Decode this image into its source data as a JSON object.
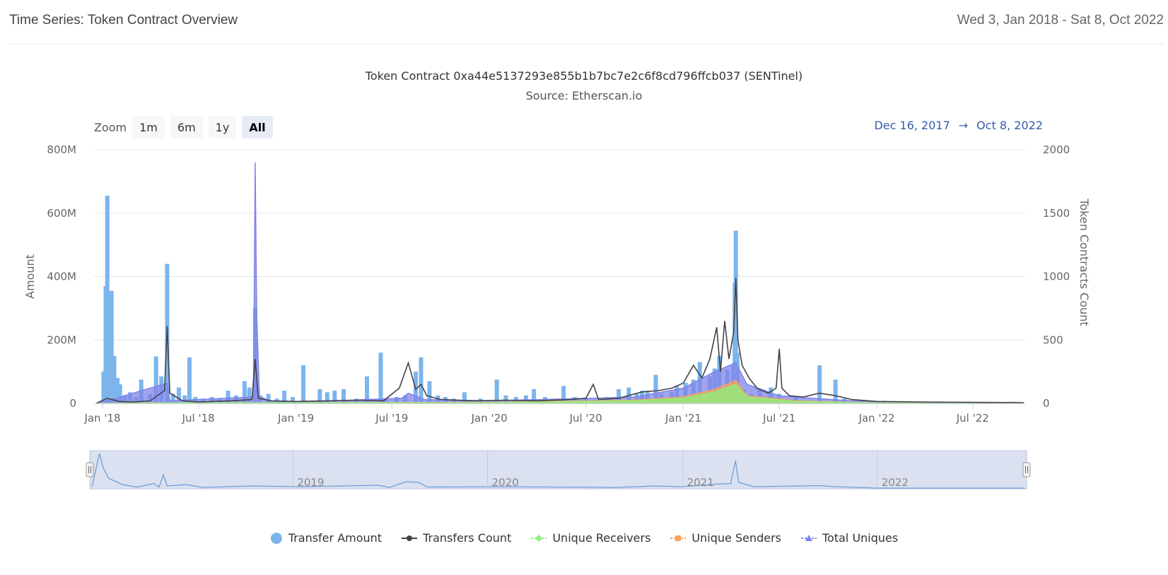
{
  "header": {
    "title": "Time Series: Token Contract Overview",
    "date_range": "Wed 3, Jan 2018 - Sat 8, Oct 2022"
  },
  "zoom": {
    "label": "Zoom",
    "buttons": [
      "1m",
      "6m",
      "1y",
      "All"
    ],
    "active": "All"
  },
  "range_display": {
    "from": "Dec 16, 2017",
    "arrow": "→",
    "to": "Oct 8, 2022"
  },
  "colors": {
    "transfer_amount": "#7cb5ec",
    "transfers_count": "#434348",
    "unique_receivers": "#90ed7d",
    "unique_senders": "#f7a35c",
    "total_uniques": "#8085e9",
    "grid": "#e6e6e6",
    "navigator_fill": "#dbe1f0",
    "navigator_line": "#6e9fd8"
  },
  "chart_data": {
    "type": "bar+line",
    "title": "Token Contract 0xa44e5137293e855b1b7bc7e2c6f8cd796ffcb037 (SENTinel)",
    "subtitle": "Source: Etherscan.io",
    "ylabel_left": "Amount",
    "ylabel_right": "Token Contracts Count",
    "ylim_left": [
      0,
      800000000
    ],
    "ylim_right": [
      0,
      2000
    ],
    "yticks_left": [
      "0",
      "200M",
      "400M",
      "600M",
      "800M"
    ],
    "yticks_right": [
      "0",
      "500",
      "1000",
      "1500",
      "2000"
    ],
    "xlim": [
      "2017-12-16",
      "2022-10-08"
    ],
    "xticks": [
      {
        "date": "2018-01-01",
        "label": "Jan '18"
      },
      {
        "date": "2018-07-01",
        "label": "Jul '18"
      },
      {
        "date": "2019-01-01",
        "label": "Jan '19"
      },
      {
        "date": "2019-07-01",
        "label": "Jul '19"
      },
      {
        "date": "2020-01-01",
        "label": "Jan '20"
      },
      {
        "date": "2020-07-01",
        "label": "Jul '20"
      },
      {
        "date": "2021-01-01",
        "label": "Jan '21"
      },
      {
        "date": "2021-07-01",
        "label": "Jul '21"
      },
      {
        "date": "2022-01-01",
        "label": "Jan '22"
      },
      {
        "date": "2022-07-01",
        "label": "Jul '22"
      }
    ],
    "navigator_labels": [
      {
        "date": "2019-01-01",
        "label": "2019"
      },
      {
        "date": "2020-01-01",
        "label": "2020"
      },
      {
        "date": "2021-01-01",
        "label": "2021"
      },
      {
        "date": "2022-01-01",
        "label": "2022"
      }
    ],
    "legend_position": "bottom-center",
    "grid": true,
    "series": [
      {
        "name": "Transfer Amount",
        "kind": "bar",
        "axis": "left",
        "unit": "M",
        "points": [
          [
            "2018-01-03",
            100
          ],
          [
            "2018-01-07",
            370
          ],
          [
            "2018-01-10",
            655
          ],
          [
            "2018-01-14",
            350
          ],
          [
            "2018-01-18",
            355
          ],
          [
            "2018-01-23",
            150
          ],
          [
            "2018-01-29",
            80
          ],
          [
            "2018-02-03",
            60
          ],
          [
            "2018-02-12",
            25
          ],
          [
            "2018-02-22",
            35
          ],
          [
            "2018-03-05",
            20
          ],
          [
            "2018-03-15",
            75
          ],
          [
            "2018-04-01",
            30
          ],
          [
            "2018-04-12",
            148
          ],
          [
            "2018-04-22",
            85
          ],
          [
            "2018-05-03",
            440
          ],
          [
            "2018-05-14",
            30
          ],
          [
            "2018-05-25",
            50
          ],
          [
            "2018-06-05",
            25
          ],
          [
            "2018-06-14",
            145
          ],
          [
            "2018-06-25",
            20
          ],
          [
            "2018-07-10",
            15
          ],
          [
            "2018-07-26",
            20
          ],
          [
            "2018-08-10",
            15
          ],
          [
            "2018-08-26",
            40
          ],
          [
            "2018-09-10",
            25
          ],
          [
            "2018-09-26",
            70
          ],
          [
            "2018-10-05",
            50
          ],
          [
            "2018-10-16",
            300
          ],
          [
            "2018-10-25",
            25
          ],
          [
            "2018-11-10",
            30
          ],
          [
            "2018-11-26",
            15
          ],
          [
            "2018-12-10",
            40
          ],
          [
            "2018-12-26",
            20
          ],
          [
            "2019-01-15",
            120
          ],
          [
            "2019-02-15",
            45
          ],
          [
            "2019-03-01",
            35
          ],
          [
            "2019-03-15",
            40
          ],
          [
            "2019-04-01",
            45
          ],
          [
            "2019-04-25",
            15
          ],
          [
            "2019-05-15",
            85
          ],
          [
            "2019-06-10",
            160
          ],
          [
            "2019-06-20",
            15
          ],
          [
            "2019-07-10",
            20
          ],
          [
            "2019-07-26",
            25
          ],
          [
            "2019-08-15",
            100
          ],
          [
            "2019-08-25",
            145
          ],
          [
            "2019-09-10",
            70
          ],
          [
            "2019-09-26",
            25
          ],
          [
            "2019-10-10",
            20
          ],
          [
            "2019-10-26",
            15
          ],
          [
            "2019-11-15",
            35
          ],
          [
            "2019-12-15",
            15
          ],
          [
            "2020-01-15",
            75
          ],
          [
            "2020-02-01",
            25
          ],
          [
            "2020-02-20",
            20
          ],
          [
            "2020-03-10",
            25
          ],
          [
            "2020-03-25",
            45
          ],
          [
            "2020-04-15",
            20
          ],
          [
            "2020-05-01",
            15
          ],
          [
            "2020-05-20",
            55
          ],
          [
            "2020-06-10",
            20
          ],
          [
            "2020-07-01",
            15
          ],
          [
            "2020-07-20",
            10
          ],
          [
            "2020-08-10",
            20
          ],
          [
            "2020-09-01",
            45
          ],
          [
            "2020-09-20",
            50
          ],
          [
            "2020-10-05",
            30
          ],
          [
            "2020-10-15",
            40
          ],
          [
            "2020-10-25",
            40
          ],
          [
            "2020-11-10",
            90
          ],
          [
            "2020-11-20",
            30
          ],
          [
            "2020-12-10",
            35
          ],
          [
            "2020-12-20",
            55
          ],
          [
            "2021-01-05",
            65
          ],
          [
            "2021-01-20",
            75
          ],
          [
            "2021-02-01",
            130
          ],
          [
            "2021-02-20",
            85
          ],
          [
            "2021-03-01",
            110
          ],
          [
            "2021-03-10",
            150
          ],
          [
            "2021-03-25",
            105
          ],
          [
            "2021-04-05",
            120
          ],
          [
            "2021-04-08",
            380
          ],
          [
            "2021-04-10",
            545
          ],
          [
            "2021-04-13",
            160
          ],
          [
            "2021-04-25",
            45
          ],
          [
            "2021-05-10",
            30
          ],
          [
            "2021-05-25",
            45
          ],
          [
            "2021-06-15",
            50
          ],
          [
            "2021-07-01",
            30
          ],
          [
            "2021-08-01",
            20
          ],
          [
            "2021-09-15",
            120
          ],
          [
            "2021-10-15",
            75
          ],
          [
            "2021-11-01",
            15
          ],
          [
            "2021-12-01",
            10
          ],
          [
            "2022-01-15",
            8
          ],
          [
            "2022-03-15",
            5
          ],
          [
            "2022-06-15",
            5
          ],
          [
            "2022-09-15",
            5
          ]
        ]
      },
      {
        "name": "Transfers Count",
        "kind": "line",
        "axis": "right",
        "points": [
          [
            "2017-12-20",
            0
          ],
          [
            "2018-01-10",
            40
          ],
          [
            "2018-02-01",
            15
          ],
          [
            "2018-03-01",
            10
          ],
          [
            "2018-04-01",
            20
          ],
          [
            "2018-04-28",
            100
          ],
          [
            "2018-05-03",
            610
          ],
          [
            "2018-05-08",
            80
          ],
          [
            "2018-06-01",
            20
          ],
          [
            "2018-07-01",
            10
          ],
          [
            "2018-08-01",
            15
          ],
          [
            "2018-09-01",
            20
          ],
          [
            "2018-10-10",
            30
          ],
          [
            "2018-10-16",
            350
          ],
          [
            "2018-10-22",
            40
          ],
          [
            "2018-11-15",
            20
          ],
          [
            "2019-01-01",
            15
          ],
          [
            "2019-03-01",
            20
          ],
          [
            "2019-05-01",
            25
          ],
          [
            "2019-06-15",
            20
          ],
          [
            "2019-07-15",
            120
          ],
          [
            "2019-08-01",
            320
          ],
          [
            "2019-08-15",
            110
          ],
          [
            "2019-08-25",
            150
          ],
          [
            "2019-09-05",
            60
          ],
          [
            "2019-10-01",
            30
          ],
          [
            "2019-12-01",
            20
          ],
          [
            "2020-02-01",
            25
          ],
          [
            "2020-04-01",
            20
          ],
          [
            "2020-06-01",
            30
          ],
          [
            "2020-07-01",
            40
          ],
          [
            "2020-07-15",
            150
          ],
          [
            "2020-07-25",
            30
          ],
          [
            "2020-09-01",
            40
          ],
          [
            "2020-10-15",
            90
          ],
          [
            "2020-11-15",
            100
          ],
          [
            "2020-12-10",
            120
          ],
          [
            "2021-01-01",
            160
          ],
          [
            "2021-01-20",
            300
          ],
          [
            "2021-02-05",
            200
          ],
          [
            "2021-02-20",
            350
          ],
          [
            "2021-03-05",
            600
          ],
          [
            "2021-03-12",
            250
          ],
          [
            "2021-03-20",
            650
          ],
          [
            "2021-03-28",
            350
          ],
          [
            "2021-04-06",
            560
          ],
          [
            "2021-04-10",
            990
          ],
          [
            "2021-04-14",
            500
          ],
          [
            "2021-04-22",
            300
          ],
          [
            "2021-05-05",
            200
          ],
          [
            "2021-05-20",
            120
          ],
          [
            "2021-06-10",
            80
          ],
          [
            "2021-06-25",
            120
          ],
          [
            "2021-07-01",
            430
          ],
          [
            "2021-07-06",
            120
          ],
          [
            "2021-07-20",
            60
          ],
          [
            "2021-08-15",
            50
          ],
          [
            "2021-09-15",
            80
          ],
          [
            "2021-10-15",
            60
          ],
          [
            "2021-11-15",
            30
          ],
          [
            "2022-01-01",
            15
          ],
          [
            "2022-04-01",
            10
          ],
          [
            "2022-07-01",
            8
          ],
          [
            "2022-10-05",
            6
          ]
        ]
      },
      {
        "name": "Unique Receivers",
        "kind": "area",
        "axis": "right",
        "points": [
          [
            "2017-12-20",
            0
          ],
          [
            "2018-06-01",
            5
          ],
          [
            "2019-01-01",
            5
          ],
          [
            "2020-01-01",
            5
          ],
          [
            "2020-10-01",
            20
          ],
          [
            "2021-01-01",
            40
          ],
          [
            "2021-03-01",
            90
          ],
          [
            "2021-04-10",
            150
          ],
          [
            "2021-05-01",
            50
          ],
          [
            "2021-08-01",
            15
          ],
          [
            "2022-01-01",
            3
          ],
          [
            "2022-10-05",
            2
          ]
        ]
      },
      {
        "name": "Unique Senders",
        "kind": "area",
        "axis": "right",
        "points": [
          [
            "2017-12-20",
            0
          ],
          [
            "2018-06-01",
            5
          ],
          [
            "2019-01-01",
            5
          ],
          [
            "2020-01-01",
            8
          ],
          [
            "2020-10-01",
            25
          ],
          [
            "2021-01-01",
            50
          ],
          [
            "2021-03-01",
            110
          ],
          [
            "2021-04-10",
            180
          ],
          [
            "2021-05-01",
            60
          ],
          [
            "2021-08-01",
            20
          ],
          [
            "2022-01-01",
            4
          ],
          [
            "2022-10-05",
            2
          ]
        ]
      },
      {
        "name": "Total Uniques",
        "kind": "area",
        "axis": "right",
        "points": [
          [
            "2017-12-20",
            0
          ],
          [
            "2018-01-10",
            20
          ],
          [
            "2018-05-03",
            160
          ],
          [
            "2018-05-08",
            20
          ],
          [
            "2018-10-13",
            50
          ],
          [
            "2018-10-16",
            1900
          ],
          [
            "2018-10-19",
            700
          ],
          [
            "2018-10-24",
            60
          ],
          [
            "2018-11-10",
            20
          ],
          [
            "2019-01-01",
            10
          ],
          [
            "2019-07-20",
            40
          ],
          [
            "2019-08-01",
            80
          ],
          [
            "2019-09-01",
            30
          ],
          [
            "2020-01-01",
            20
          ],
          [
            "2020-07-15",
            40
          ],
          [
            "2020-10-01",
            50
          ],
          [
            "2021-01-01",
            120
          ],
          [
            "2021-03-01",
            250
          ],
          [
            "2021-04-10",
            320
          ],
          [
            "2021-05-01",
            150
          ],
          [
            "2021-07-01",
            60
          ],
          [
            "2021-09-01",
            40
          ],
          [
            "2022-01-01",
            8
          ],
          [
            "2022-10-05",
            4
          ]
        ]
      }
    ]
  },
  "navigator": {
    "points": [
      [
        "2017-12-20",
        5
      ],
      [
        "2018-01-03",
        100
      ],
      [
        "2018-01-10",
        60
      ],
      [
        "2018-01-20",
        30
      ],
      [
        "2018-02-15",
        12
      ],
      [
        "2018-03-15",
        5
      ],
      [
        "2018-04-15",
        15
      ],
      [
        "2018-04-25",
        5
      ],
      [
        "2018-05-03",
        40
      ],
      [
        "2018-05-10",
        8
      ],
      [
        "2018-06-15",
        12
      ],
      [
        "2018-07-15",
        4
      ],
      [
        "2018-10-16",
        8
      ],
      [
        "2019-01-15",
        6
      ],
      [
        "2019-06-10",
        10
      ],
      [
        "2019-07-01",
        4
      ],
      [
        "2019-08-01",
        20
      ],
      [
        "2019-08-25",
        18
      ],
      [
        "2019-09-10",
        5
      ],
      [
        "2020-01-15",
        6
      ],
      [
        "2020-09-01",
        4
      ],
      [
        "2020-11-10",
        8
      ],
      [
        "2021-01-01",
        6
      ],
      [
        "2021-02-20",
        12
      ],
      [
        "2021-04-01",
        15
      ],
      [
        "2021-04-10",
        80
      ],
      [
        "2021-04-16",
        18
      ],
      [
        "2021-05-15",
        6
      ],
      [
        "2021-09-15",
        9
      ],
      [
        "2021-10-15",
        6
      ],
      [
        "2022-01-01",
        2
      ],
      [
        "2022-10-05",
        2
      ]
    ]
  }
}
